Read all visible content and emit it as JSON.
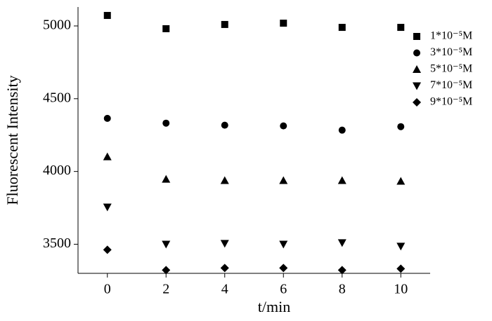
{
  "chart_data": {
    "type": "scatter",
    "x_label": "t/min",
    "y_label": "Fluorescent Intensity",
    "xlim": [
      -1,
      11
    ],
    "ylim": [
      3300,
      5130
    ],
    "xticks": [
      0,
      2,
      4,
      6,
      8,
      10
    ],
    "yticks": [
      3500,
      4000,
      4500,
      5000
    ],
    "legend": "upper right",
    "series": [
      {
        "name": "1*10⁻⁵M",
        "color": "#000000",
        "marker": "square",
        "x": [
          0,
          2,
          4,
          6,
          8,
          10
        ],
        "values": [
          5072,
          4981,
          5010,
          5019,
          4990,
          4990
        ]
      },
      {
        "name": "3*10⁻⁵M",
        "color": "#000000",
        "marker": "circle",
        "x": [
          0,
          2,
          4,
          6,
          8,
          10
        ],
        "values": [
          4365,
          4332,
          4318,
          4313,
          4284,
          4308
        ]
      },
      {
        "name": "5*10⁻⁵M",
        "color": "#000000",
        "marker": "triangle-up",
        "x": [
          0,
          2,
          4,
          6,
          8,
          10
        ],
        "values": [
          4101,
          3947,
          3938,
          3938,
          3938,
          3933
        ]
      },
      {
        "name": "7*10⁻⁵M",
        "color": "#000000",
        "marker": "triangle-down",
        "x": [
          0,
          2,
          4,
          6,
          8,
          10
        ],
        "values": [
          3755,
          3500,
          3505,
          3500,
          3510,
          3486
        ]
      },
      {
        "name": "9*10⁻⁵M",
        "color": "#000000",
        "marker": "diamond",
        "x": [
          0,
          2,
          4,
          6,
          8,
          10
        ],
        "values": [
          3462,
          3322,
          3337,
          3337,
          3322,
          3332
        ]
      }
    ]
  }
}
